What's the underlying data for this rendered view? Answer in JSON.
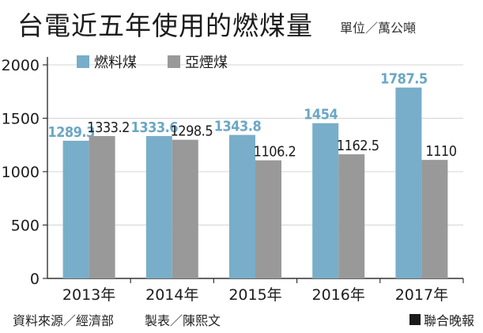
{
  "header": {
    "title": "台電近五年使用的燃煤量",
    "unit": "單位／萬公噸"
  },
  "footer": {
    "source": "資料來源／經濟部",
    "maker": "製表／陳熙文",
    "brand": "聯合晚報"
  },
  "chart_data": {
    "type": "bar",
    "title": "台電近五年使用的燃煤量",
    "ylabel": "",
    "xlabel": "",
    "ylim": [
      0,
      2000
    ],
    "yticks": [
      0,
      500,
      1000,
      1500,
      2000
    ],
    "grid": true,
    "legend_position": "top-left",
    "categories": [
      "2013年",
      "2014年",
      "2015年",
      "2016年",
      "2017年"
    ],
    "series": [
      {
        "name": "燃料煤",
        "color": "#78aec9",
        "label_color": "#6ba7c4",
        "values": [
          1289.3,
          1333.6,
          1343.8,
          1454,
          1787.5
        ],
        "labels": [
          "1289.3",
          "1333.6",
          "1343.8",
          "1454",
          "1787.5"
        ]
      },
      {
        "name": "亞煙煤",
        "color": "#999999",
        "label_color": "#1c1c1c",
        "values": [
          1333.2,
          1298.5,
          1106.2,
          1162.5,
          1110
        ],
        "labels": [
          "1333.2",
          "1298.5",
          "1106.2",
          "1162.5",
          "1110"
        ]
      }
    ]
  }
}
